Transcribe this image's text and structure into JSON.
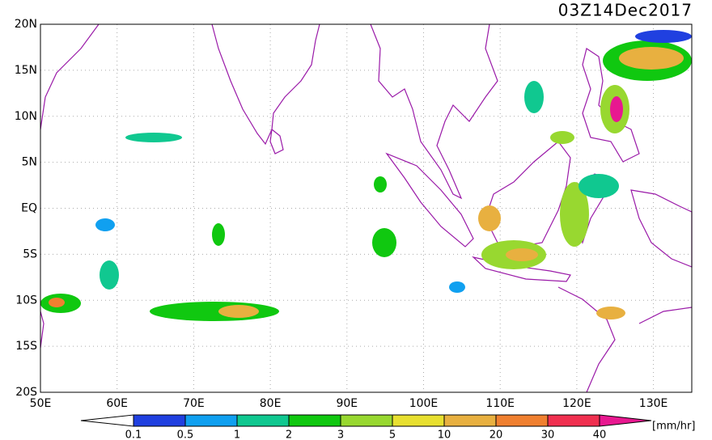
{
  "title": "03Z14Dec2017",
  "map": {
    "lat_labels": [
      "20N",
      "15N",
      "10N",
      "5N",
      "EQ",
      "5S",
      "10S",
      "15S",
      "20S"
    ],
    "lon_labels": [
      "50E",
      "60E",
      "70E",
      "80E",
      "90E",
      "100E",
      "110E",
      "120E",
      "130E"
    ]
  },
  "legend": {
    "ticks": [
      "0.1",
      "0.5",
      "1",
      "2",
      "3",
      "5",
      "10",
      "20",
      "30",
      "40"
    ],
    "unit": "[mm/hr]"
  }
}
